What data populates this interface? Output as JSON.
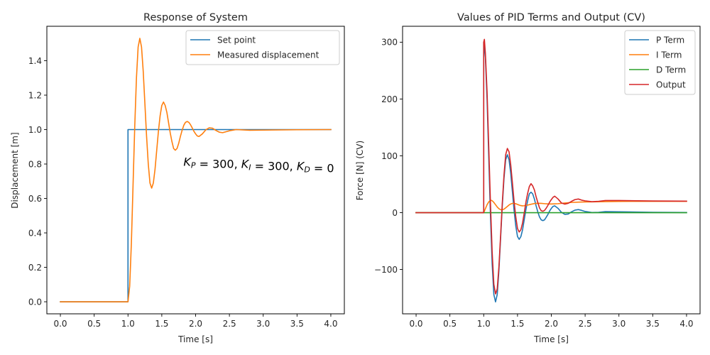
{
  "chart_data": [
    {
      "type": "line",
      "title": "Response of System",
      "xlabel": "Time [s]",
      "ylabel": "Displacement [m]",
      "xlim": [
        -0.2,
        4.2
      ],
      "ylim": [
        -0.07,
        1.6
      ],
      "xticks": [
        0.0,
        0.5,
        1.0,
        1.5,
        2.0,
        2.5,
        3.0,
        3.5,
        4.0
      ],
      "xtick_labels": [
        "0.0",
        "0.5",
        "1.0",
        "1.5",
        "2.0",
        "2.5",
        "3.0",
        "3.5",
        "4.0"
      ],
      "yticks": [
        0.0,
        0.2,
        0.4,
        0.6,
        0.8,
        1.0,
        1.2,
        1.4
      ],
      "ytick_labels": [
        "0.0",
        "0.2",
        "0.4",
        "0.6",
        "0.8",
        "1.0",
        "1.2",
        "1.4"
      ],
      "grid": false,
      "legend_position": "top-right",
      "annotation": {
        "parts": [
          {
            "text": "K",
            "italic": true
          },
          {
            "text": "P",
            "sub": true
          },
          {
            "text": " = 300, ",
            "italic": false
          },
          {
            "text": "K",
            "italic": true
          },
          {
            "text": "I",
            "sub": true
          },
          {
            "text": " = 300, ",
            "italic": false
          },
          {
            "text": "K",
            "italic": true
          },
          {
            "text": "D",
            "sub": true
          },
          {
            "text": " = 0",
            "italic": false
          }
        ],
        "x": 1.82,
        "y": 0.79
      },
      "series": [
        {
          "name": "Set point",
          "color": "#1f77b4",
          "x": [
            0.0,
            1.0,
            1.0,
            4.0
          ],
          "y": [
            0.0,
            0.0,
            1.0,
            1.0
          ]
        },
        {
          "name": "Measured displacement",
          "color": "#ff7f0e",
          "x": [
            0.0,
            1.0,
            1.025,
            1.05,
            1.075,
            1.1,
            1.125,
            1.15,
            1.175,
            1.2,
            1.225,
            1.25,
            1.275,
            1.3,
            1.325,
            1.35,
            1.375,
            1.4,
            1.425,
            1.45,
            1.475,
            1.5,
            1.525,
            1.55,
            1.575,
            1.6,
            1.625,
            1.65,
            1.675,
            1.7,
            1.725,
            1.75,
            1.775,
            1.8,
            1.825,
            1.85,
            1.875,
            1.9,
            1.925,
            1.95,
            1.975,
            2.0,
            2.025,
            2.05,
            2.1,
            2.15,
            2.2,
            2.25,
            2.3,
            2.35,
            2.4,
            2.5,
            2.6,
            2.7,
            2.8,
            3.0,
            3.5,
            4.0
          ],
          "y": [
            0.0,
            0.0,
            0.09,
            0.34,
            0.68,
            1.02,
            1.3,
            1.48,
            1.53,
            1.48,
            1.34,
            1.15,
            0.96,
            0.8,
            0.69,
            0.66,
            0.69,
            0.77,
            0.88,
            0.99,
            1.08,
            1.14,
            1.16,
            1.14,
            1.1,
            1.04,
            0.98,
            0.93,
            0.89,
            0.88,
            0.89,
            0.92,
            0.96,
            0.995,
            1.025,
            1.042,
            1.047,
            1.042,
            1.028,
            1.01,
            0.99,
            0.975,
            0.963,
            0.96,
            0.975,
            0.998,
            1.01,
            1.008,
            0.995,
            0.985,
            0.982,
            0.993,
            1.0,
            0.998,
            0.996,
            0.997,
            0.999,
            1.0
          ]
        }
      ]
    },
    {
      "type": "line",
      "title": "Values of PID Terms and Output (CV)",
      "xlabel": "Time [s]",
      "ylabel": "Force [N] (CV)",
      "xlim": [
        -0.2,
        4.2
      ],
      "ylim": [
        -178,
        328
      ],
      "xticks": [
        0.0,
        0.5,
        1.0,
        1.5,
        2.0,
        2.5,
        3.0,
        3.5,
        4.0
      ],
      "xtick_labels": [
        "0.0",
        "0.5",
        "1.0",
        "1.5",
        "2.0",
        "2.5",
        "3.0",
        "3.5",
        "4.0"
      ],
      "yticks": [
        -100,
        0,
        100,
        200,
        300
      ],
      "ytick_labels": [
        "−100",
        "0",
        "100",
        "200",
        "300"
      ],
      "grid": false,
      "legend_position": "top-right",
      "series": [
        {
          "name": "P Term",
          "color": "#1f77b4",
          "x": [
            0.0,
            1.0,
            1.0,
            1.025,
            1.05,
            1.075,
            1.1,
            1.125,
            1.15,
            1.175,
            1.2,
            1.225,
            1.25,
            1.275,
            1.3,
            1.325,
            1.35,
            1.375,
            1.4,
            1.425,
            1.45,
            1.475,
            1.5,
            1.525,
            1.55,
            1.575,
            1.6,
            1.625,
            1.65,
            1.675,
            1.7,
            1.725,
            1.75,
            1.775,
            1.8,
            1.825,
            1.85,
            1.875,
            1.9,
            1.925,
            1.95,
            1.975,
            2.0,
            2.025,
            2.05,
            2.1,
            2.15,
            2.2,
            2.25,
            2.3,
            2.35,
            2.4,
            2.45,
            2.5,
            2.6,
            2.7,
            2.8,
            3.0,
            3.5,
            4.0
          ],
          "y": [
            0,
            0,
            300,
            273,
            198,
            96,
            -6,
            -90,
            -144,
            -157,
            -144,
            -102,
            -45,
            12,
            60,
            93,
            102,
            93,
            69,
            36,
            3,
            -24,
            -42,
            -47,
            -42,
            -30,
            -12,
            6,
            21,
            33,
            36,
            33,
            24,
            12,
            1.5,
            -7.5,
            -12.6,
            -14,
            -12.6,
            -8,
            -3,
            3,
            7.5,
            11,
            12,
            7.5,
            0.6,
            -3,
            -2.4,
            1.5,
            4.5,
            5.4,
            4,
            2.1,
            0.3,
            0.6,
            1.8,
            1.5,
            0.6,
            0.3
          ]
        },
        {
          "name": "I Term",
          "color": "#ff7f0e",
          "x": [
            0.0,
            1.0,
            1.025,
            1.05,
            1.075,
            1.1,
            1.125,
            1.15,
            1.175,
            1.2,
            1.225,
            1.25,
            1.275,
            1.3,
            1.325,
            1.35,
            1.375,
            1.4,
            1.425,
            1.45,
            1.475,
            1.5,
            1.525,
            1.55,
            1.575,
            1.6,
            1.65,
            1.7,
            1.75,
            1.8,
            1.85,
            1.9,
            1.95,
            2.0,
            2.1,
            2.2,
            2.3,
            2.4,
            2.5,
            2.6,
            2.8,
            3.0,
            3.5,
            4.0
          ],
          "y": [
            0,
            0,
            7,
            14,
            19,
            22,
            21,
            18,
            14,
            10,
            7,
            5.2,
            5.0,
            6.2,
            8.5,
            11,
            13.5,
            15.3,
            16.3,
            16.4,
            15.7,
            14.5,
            13.3,
            12.4,
            12,
            12.2,
            13.3,
            14.8,
            16,
            16.5,
            16.3,
            15.8,
            15.4,
            15.3,
            15.8,
            17,
            18,
            18.6,
            18.8,
            19,
            19.5,
            19.8,
            20,
            20
          ]
        },
        {
          "name": "D Term",
          "color": "#2ca02c",
          "x": [
            0.0,
            4.0
          ],
          "y": [
            0,
            0
          ]
        },
        {
          "name": "Output",
          "color": "#d62728",
          "x": [
            0.0,
            1.0,
            1.0,
            1.01,
            1.025,
            1.05,
            1.075,
            1.1,
            1.125,
            1.15,
            1.175,
            1.2,
            1.225,
            1.25,
            1.275,
            1.3,
            1.325,
            1.35,
            1.375,
            1.4,
            1.425,
            1.45,
            1.475,
            1.5,
            1.525,
            1.55,
            1.575,
            1.6,
            1.625,
            1.65,
            1.675,
            1.7,
            1.725,
            1.75,
            1.775,
            1.8,
            1.825,
            1.85,
            1.875,
            1.9,
            1.925,
            1.95,
            1.975,
            2.0,
            2.025,
            2.05,
            2.1,
            2.15,
            2.2,
            2.25,
            2.3,
            2.35,
            2.4,
            2.45,
            2.5,
            2.6,
            2.7,
            2.8,
            3.0,
            3.5,
            4.0
          ],
          "y": [
            0,
            0,
            300,
            305,
            280,
            212,
            115,
            16,
            -69,
            -126,
            -143,
            -134,
            -95,
            -40,
            17,
            66,
            102,
            113,
            107,
            84,
            52,
            19,
            -8,
            -28,
            -34,
            -30,
            -18,
            0,
            19,
            34,
            46,
            51,
            47,
            40,
            28,
            18,
            8.5,
            3.5,
            2.5,
            4,
            8,
            13,
            18.5,
            23,
            27,
            29,
            24,
            17,
            15,
            16.5,
            20,
            23,
            24,
            22,
            20.8,
            19.3,
            20,
            21.3,
            21.3,
            20.6,
            20.3
          ]
        }
      ]
    }
  ]
}
